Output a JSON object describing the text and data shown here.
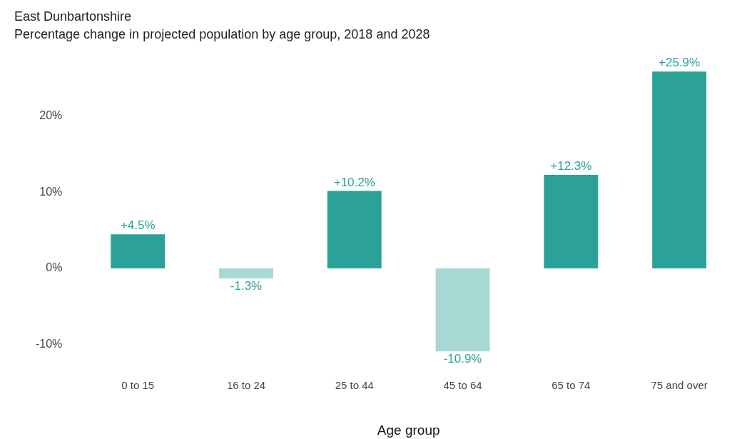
{
  "chart_data": {
    "type": "bar",
    "title": "East Dunbartonshire",
    "subtitle": "Percentage change in projected population by age group, 2018 and 2028",
    "xlabel": "Age group",
    "categories": [
      "0 to 15",
      "16 to 24",
      "25 to 44",
      "45 to 64",
      "65 to 74",
      "75 and over"
    ],
    "values": [
      4.5,
      -1.3,
      10.2,
      -10.9,
      12.3,
      25.9
    ],
    "colors": [
      "#2ca197",
      "#a8d8d3",
      "#2ca197",
      "#a8d8d3",
      "#2ca197",
      "#2ca197"
    ],
    "value_labels": [
      "+4.5%",
      "-1.3%",
      "+10.2%",
      "-10.9%",
      "+12.3%",
      "+25.9%"
    ],
    "yticks": [
      {
        "value": -10,
        "label": "-10%"
      },
      {
        "value": 0,
        "label": "0%"
      },
      {
        "value": 10,
        "label": "10%"
      },
      {
        "value": 20,
        "label": "20%"
      }
    ],
    "ylim": [
      -10.9,
      25.9
    ],
    "grid": false,
    "legend": false
  }
}
